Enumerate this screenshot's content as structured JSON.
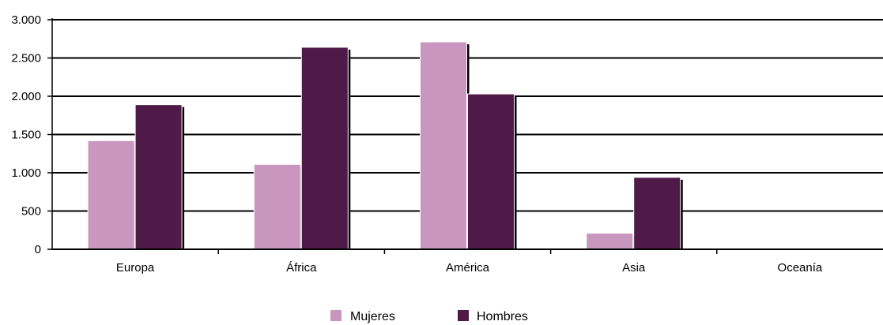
{
  "chart_data": {
    "type": "bar",
    "categories": [
      "Europa",
      "África",
      "América",
      "Asia",
      "Oceanía"
    ],
    "series": [
      {
        "name": "Mujeres",
        "values": [
          1420,
          1110,
          2710,
          210,
          0
        ],
        "color": "#c896be"
      },
      {
        "name": "Hombres",
        "values": [
          1890,
          2640,
          2030,
          940,
          0
        ],
        "color": "#4f1a48"
      }
    ],
    "ylim": [
      0,
      3000
    ],
    "yticks": [
      0,
      500,
      1000,
      1500,
      2000,
      2500,
      3000
    ],
    "ytick_labels": [
      "0",
      "500",
      "1.000",
      "1.500",
      "2.000",
      "2.500",
      "3.000"
    ],
    "grid": true,
    "legend_position": "bottom-center",
    "title": "",
    "xlabel": "",
    "ylabel": ""
  }
}
